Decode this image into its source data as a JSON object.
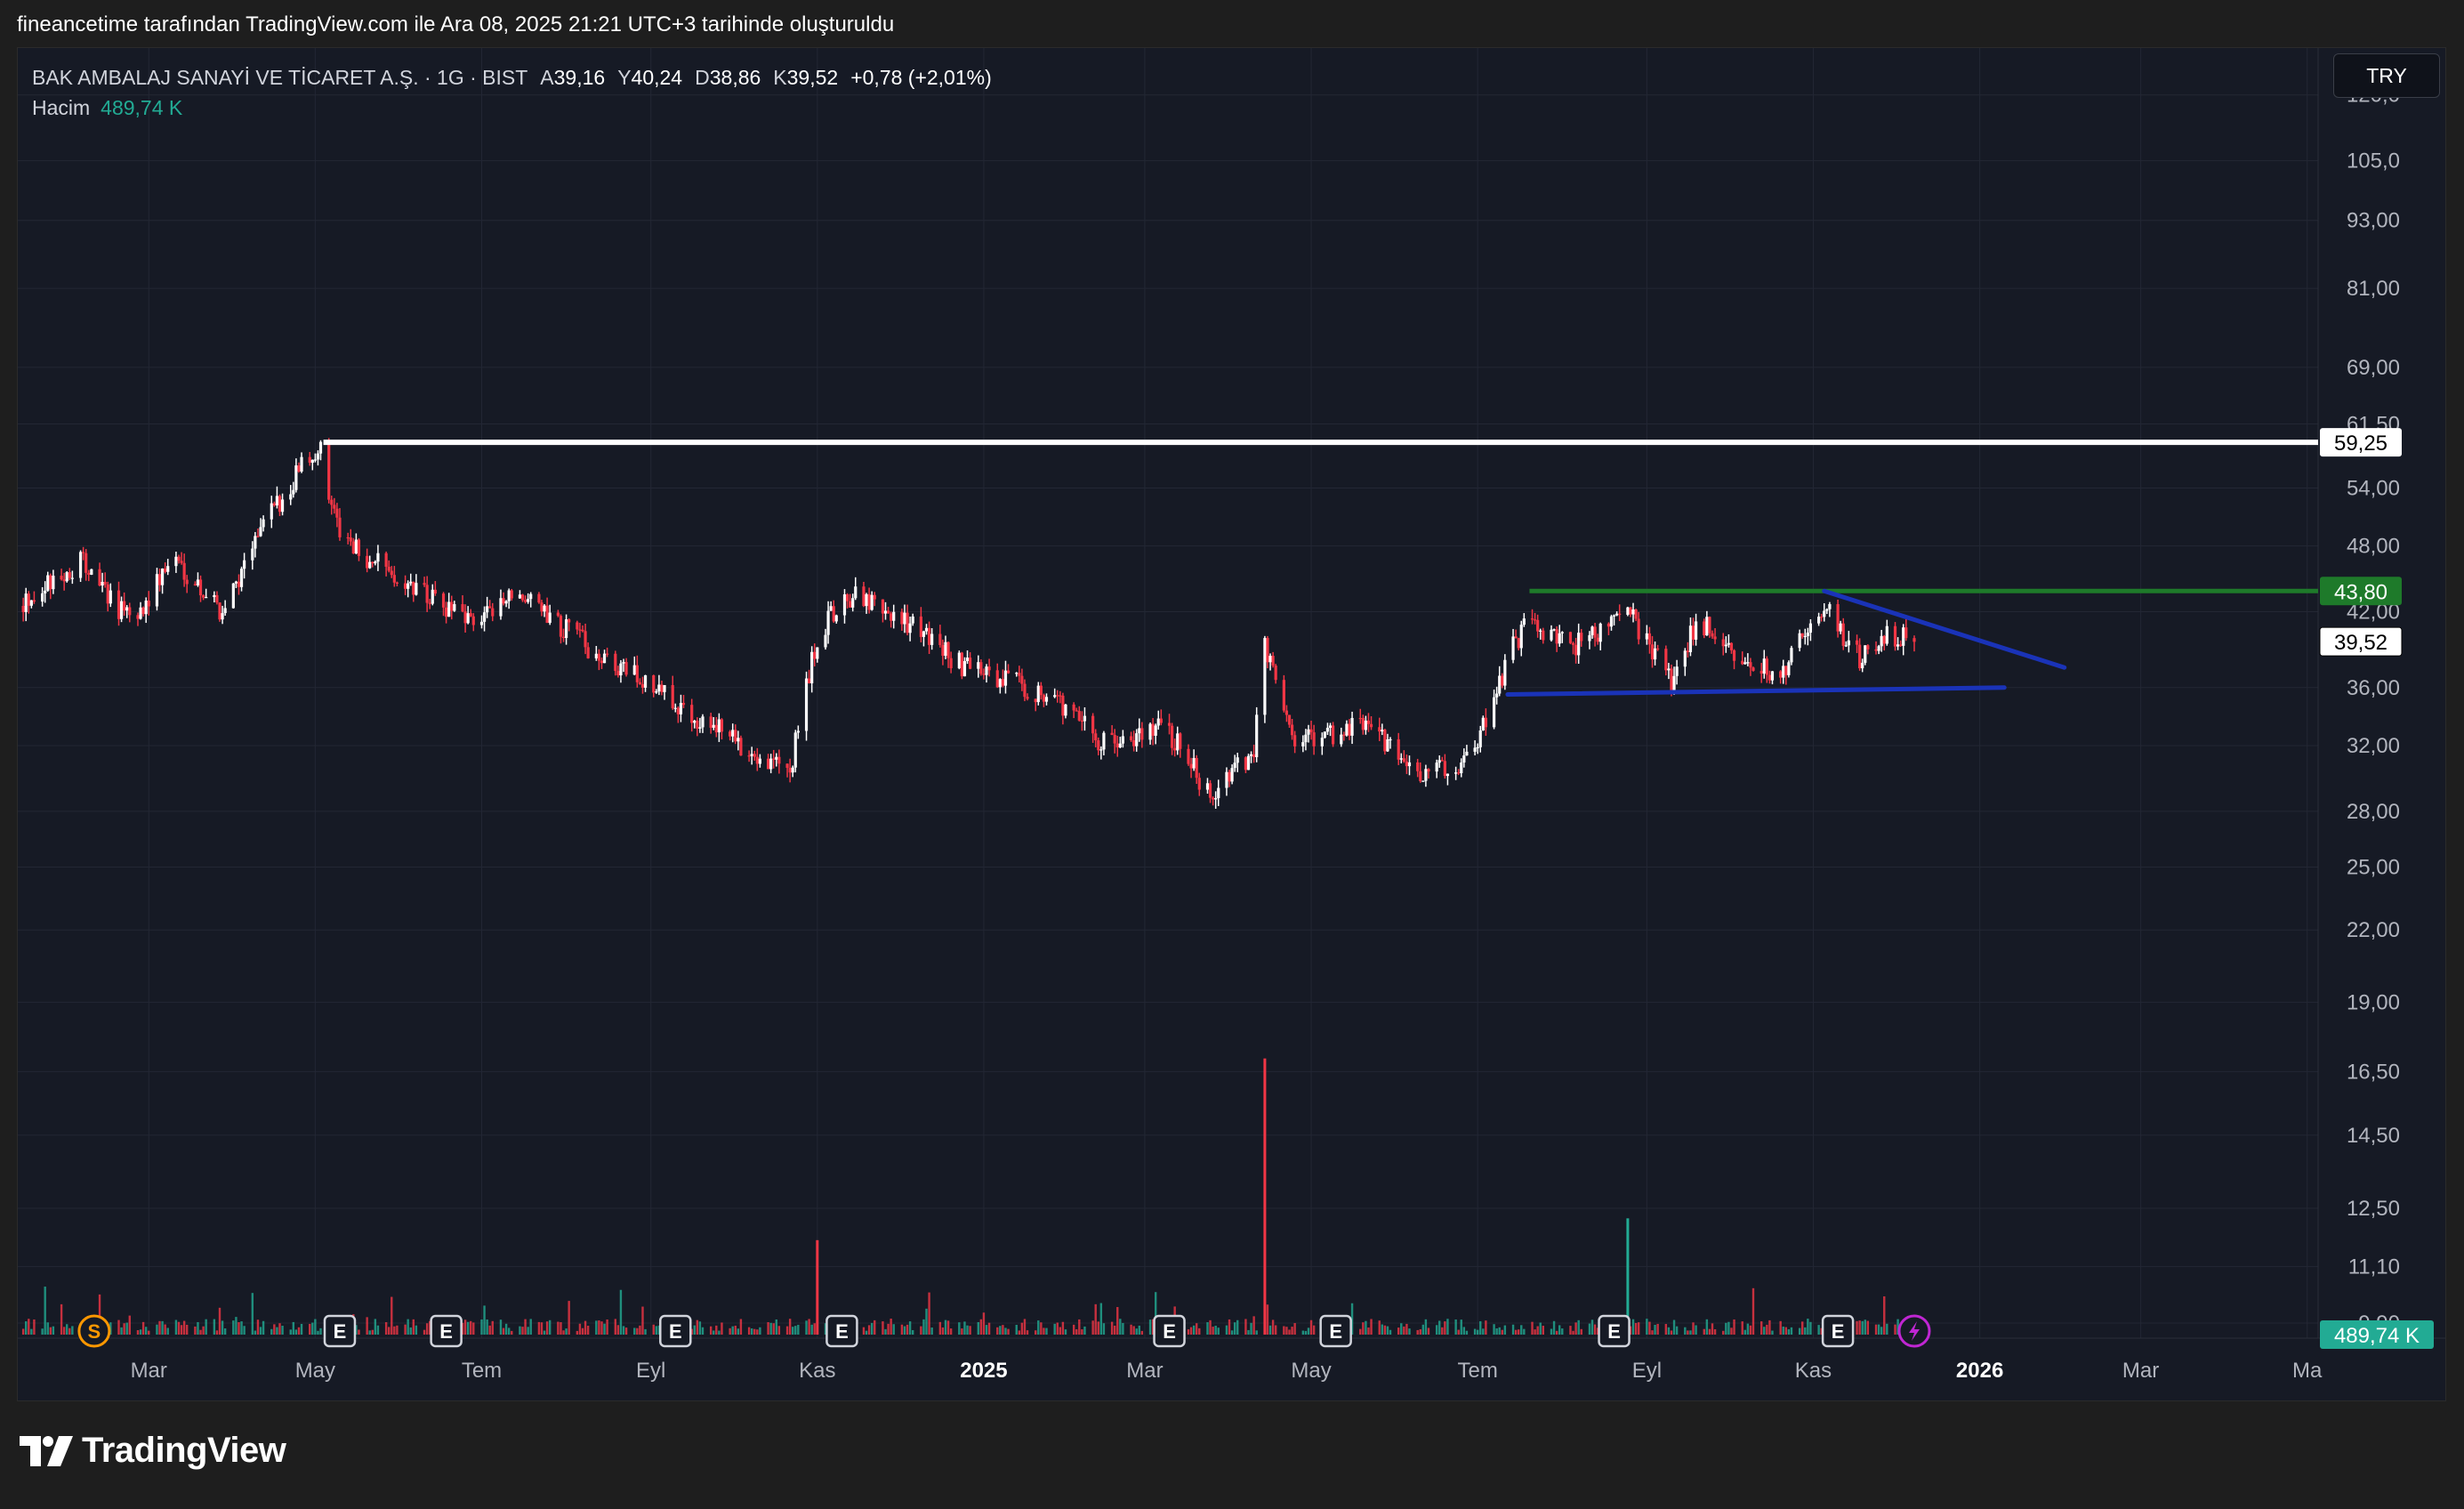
{
  "attribution": "fineancetime tarafından TradingView.com ile Ara 08, 2025 21:21 UTC+3 tarihinde oluşturuldu",
  "legend": {
    "symbol": "BAK AMBALAJ SANAYİ VE TİCARET A.Ş. · 1G · BIST",
    "open_label": "A",
    "open": "39,16",
    "high_label": "Y",
    "high": "40,24",
    "low_label": "D",
    "low": "38,86",
    "close_label": "K",
    "close": "39,52",
    "change": "+0,78 (+2,01%)",
    "volume_label": "Hacim",
    "volume": "489,74 K"
  },
  "currency_button": "TRY",
  "brand": "TradingView",
  "colors": {
    "up": "#ffffff",
    "down": "#f23645",
    "vol_up": "#22ab94",
    "vol_down": "#f23645",
    "resistance": "#ffffff",
    "range_top": "#1e7a2a",
    "triangle": "#1a33b8",
    "background": "#161a25",
    "grid": "#232734"
  },
  "chart_data": {
    "type": "candlestick",
    "symbol": "BAK AMBALAJ SANAYİ VE TİCARET A.Ş.",
    "interval": "1G",
    "exchange": "BIST",
    "currency": "TRY",
    "y_scale": "log",
    "y_ticks": [
      "120,0",
      "105,0",
      "93,00",
      "81,00",
      "69,00",
      "61,50",
      "54,00",
      "48,00",
      "42,00",
      "36,00",
      "32,00",
      "28,00",
      "25,00",
      "22,00",
      "19,00",
      "16,50",
      "14,50",
      "12,50",
      "11,10",
      "9,90"
    ],
    "y_tick_values": [
      120,
      105,
      93,
      81,
      69,
      61.5,
      54,
      48,
      42,
      36,
      32,
      28,
      25,
      22,
      19,
      16.5,
      14.5,
      12.5,
      11.1,
      9.9
    ],
    "x_ticks": [
      "Mar",
      "May",
      "Tem",
      "Eyl",
      "Kas",
      "2025",
      "Mar",
      "May",
      "Tem",
      "Eyl",
      "Kas",
      "2026",
      "Mar",
      "Ma"
    ],
    "x_tick_dates": [
      "2024-03-01",
      "2024-05-01",
      "2024-07-01",
      "2024-09-01",
      "2024-11-01",
      "2025-01-01",
      "2025-03-01",
      "2025-05-01",
      "2025-07-01",
      "2025-09-01",
      "2025-11-01",
      "2026-01-01",
      "2026-03-01",
      "2026-05-01"
    ],
    "x_range": [
      "2024-01-13",
      "2026-05-05"
    ],
    "y_range": [
      9.6,
      132
    ],
    "price_key_points": [
      {
        "date": "2024-01-13",
        "close": 42.5
      },
      {
        "date": "2024-02-05",
        "close": 46.5
      },
      {
        "date": "2024-02-24",
        "close": 41.0
      },
      {
        "date": "2024-03-10",
        "close": 47.0
      },
      {
        "date": "2024-03-28",
        "close": 42.0
      },
      {
        "date": "2024-04-10",
        "close": 49.0
      },
      {
        "date": "2024-04-28",
        "close": 57.5
      },
      {
        "date": "2024-05-03",
        "close": 58.5
      },
      {
        "date": "2024-05-10",
        "close": 48.5
      },
      {
        "date": "2024-06-01",
        "close": 45.0
      },
      {
        "date": "2024-06-25",
        "close": 41.0
      },
      {
        "date": "2024-07-15",
        "close": 43.5
      },
      {
        "date": "2024-08-10",
        "close": 39.0
      },
      {
        "date": "2024-09-01",
        "close": 36.0
      },
      {
        "date": "2024-10-05",
        "close": 32.0
      },
      {
        "date": "2024-10-22",
        "close": 30.5
      },
      {
        "date": "2024-11-01",
        "close": 40.0
      },
      {
        "date": "2024-11-12",
        "close": 43.5
      },
      {
        "date": "2024-12-05",
        "close": 41.0
      },
      {
        "date": "2024-12-25",
        "close": 37.5
      },
      {
        "date": "2025-01-25",
        "close": 35.5
      },
      {
        "date": "2025-02-15",
        "close": 32.0
      },
      {
        "date": "2025-03-08",
        "close": 33.5
      },
      {
        "date": "2025-03-25",
        "close": 29.0
      },
      {
        "date": "2025-04-10",
        "close": 31.5
      },
      {
        "date": "2025-04-14",
        "close": 39.5
      },
      {
        "date": "2025-04-25",
        "close": 32.0
      },
      {
        "date": "2025-05-20",
        "close": 33.5
      },
      {
        "date": "2025-06-10",
        "close": 30.0
      },
      {
        "date": "2025-06-28",
        "close": 31.0
      },
      {
        "date": "2025-07-12",
        "close": 38.0
      },
      {
        "date": "2025-07-19",
        "close": 41.5
      },
      {
        "date": "2025-08-03",
        "close": 39.0
      },
      {
        "date": "2025-08-25",
        "close": 42.0
      },
      {
        "date": "2025-09-10",
        "close": 36.5
      },
      {
        "date": "2025-09-20",
        "close": 41.5
      },
      {
        "date": "2025-10-05",
        "close": 38.0
      },
      {
        "date": "2025-10-20",
        "close": 37.0
      },
      {
        "date": "2025-11-05",
        "close": 42.5
      },
      {
        "date": "2025-11-18",
        "close": 38.0
      },
      {
        "date": "2025-11-28",
        "close": 40.0
      },
      {
        "date": "2025-12-08",
        "close": 39.52
      }
    ],
    "last_price": "39,52",
    "horizontal_lines": [
      {
        "label": "59,25",
        "value": 59.25,
        "from": "2024-05-04",
        "color": "#ffffff"
      },
      {
        "label": "43,80",
        "value": 43.8,
        "from": "2025-07-20",
        "color": "#1e7a2a"
      }
    ],
    "trend_lines": [
      {
        "from": {
          "date": "2025-07-12",
          "value": 35.5
        },
        "to": {
          "date": "2026-01-10",
          "value": 36.0
        },
        "color": "#1a33b8"
      },
      {
        "from": {
          "date": "2025-11-05",
          "value": 43.8
        },
        "to": {
          "date": "2026-02-01",
          "value": 37.5
        },
        "color": "#1a33b8"
      }
    ],
    "volume": {
      "last_label": "489,74 K",
      "last_value": 489740,
      "spikes": [
        {
          "date": "2025-04-14",
          "value": 7600000,
          "direction": "down"
        },
        {
          "date": "2024-11-01",
          "value": 2600000,
          "direction": "down"
        },
        {
          "date": "2025-08-25",
          "value": 3200000,
          "direction": "up"
        }
      ]
    },
    "event_markers": [
      {
        "type": "S",
        "date": "2024-02-10"
      },
      {
        "type": "E",
        "date": "2024-05-10"
      },
      {
        "type": "E",
        "date": "2024-06-18"
      },
      {
        "type": "E",
        "date": "2024-09-10"
      },
      {
        "type": "E",
        "date": "2024-11-10"
      },
      {
        "type": "E",
        "date": "2025-03-10"
      },
      {
        "type": "E",
        "date": "2025-05-10"
      },
      {
        "type": "E",
        "date": "2025-08-20"
      },
      {
        "type": "E",
        "date": "2025-11-10"
      },
      {
        "type": "lightning",
        "date": "2025-12-08"
      }
    ]
  }
}
